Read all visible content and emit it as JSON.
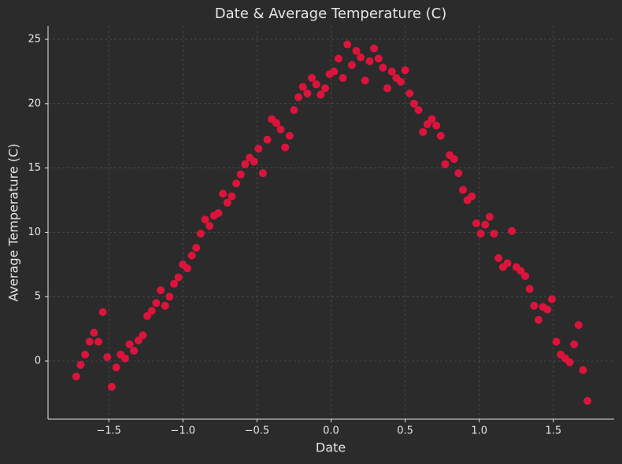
{
  "chart_data": {
    "type": "scatter",
    "title": "Date & Average Temperature (C)",
    "x_label": "Date",
    "y_label": "Average Temperature (C)",
    "color": "#dc143c",
    "grid": true,
    "xlim": [
      -1.91,
      1.91
    ],
    "ylim": [
      -4.52,
      26.04
    ],
    "xticks": [
      {
        "value": -1.5,
        "label": "−1.5"
      },
      {
        "value": -1.0,
        "label": "−1.0"
      },
      {
        "value": -0.5,
        "label": "−0.5"
      },
      {
        "value": 0,
        "label": "0.0"
      },
      0.5,
      {
        "value": 1,
        "label": "1.0"
      },
      1.5
    ],
    "yticks": [
      0,
      5,
      10,
      15,
      20,
      25
    ],
    "x": [
      -1.72,
      -1.69,
      -1.66,
      -1.63,
      -1.6,
      -1.57,
      -1.54,
      -1.51,
      -1.48,
      -1.45,
      -1.42,
      -1.39,
      -1.36,
      -1.33,
      -1.3,
      -1.27,
      -1.24,
      -1.21,
      -1.18,
      -1.15,
      -1.12,
      -1.09,
      -1.06,
      -1.03,
      -1.0,
      -0.97,
      -0.94,
      -0.91,
      -0.88,
      -0.85,
      -0.82,
      -0.79,
      -0.76,
      -0.73,
      -0.7,
      -0.67,
      -0.64,
      -0.61,
      -0.58,
      -0.55,
      -0.52,
      -0.49,
      -0.46,
      -0.43,
      -0.4,
      -0.37,
      -0.34,
      -0.31,
      -0.28,
      -0.25,
      -0.22,
      -0.19,
      -0.16,
      -0.13,
      -0.1,
      -0.07,
      -0.04,
      -0.01,
      0.02,
      0.05,
      0.08,
      0.11,
      0.14,
      0.17,
      0.2,
      0.23,
      0.26,
      0.29,
      0.32,
      0.35,
      0.38,
      0.41,
      0.44,
      0.47,
      0.5,
      0.53,
      0.56,
      0.59,
      0.62,
      0.65,
      0.68,
      0.71,
      0.74,
      0.77,
      0.8,
      0.83,
      0.86,
      0.89,
      0.92,
      0.95,
      0.98,
      1.01,
      1.04,
      1.07,
      1.1,
      1.13,
      1.16,
      1.19,
      1.22,
      1.25,
      1.28,
      1.31,
      1.34,
      1.37,
      1.4,
      1.43,
      1.46,
      1.49,
      1.52,
      1.55,
      1.58,
      1.61,
      1.64,
      1.67,
      1.7,
      1.73
    ],
    "values": [
      -1.2,
      -0.3,
      0.5,
      1.5,
      2.2,
      1.5,
      3.8,
      0.3,
      -2.0,
      -0.5,
      0.5,
      0.2,
      1.3,
      0.8,
      1.6,
      2.0,
      3.5,
      3.9,
      4.5,
      5.5,
      4.3,
      5.0,
      6.0,
      6.5,
      7.5,
      7.2,
      8.2,
      8.8,
      9.9,
      11.0,
      10.5,
      11.3,
      11.5,
      13.0,
      12.3,
      12.8,
      13.8,
      14.5,
      15.3,
      15.8,
      15.5,
      16.5,
      14.6,
      17.2,
      18.8,
      18.5,
      18.0,
      16.6,
      17.5,
      19.5,
      20.5,
      21.3,
      20.8,
      22.0,
      21.5,
      20.7,
      21.2,
      22.3,
      22.5,
      23.5,
      22.0,
      24.6,
      23.0,
      24.1,
      23.6,
      21.8,
      23.3,
      24.3,
      23.5,
      22.8,
      21.2,
      22.5,
      22.0,
      21.7,
      22.6,
      20.8,
      20.0,
      19.5,
      17.8,
      18.4,
      18.8,
      18.3,
      17.5,
      15.3,
      16.0,
      15.7,
      14.6,
      13.3,
      12.5,
      12.8,
      10.7,
      9.9,
      10.6,
      11.2,
      9.9,
      8.0,
      7.3,
      7.6,
      10.1,
      7.3,
      7.0,
      6.6,
      5.6,
      4.3,
      3.2,
      4.2,
      4.0,
      4.8,
      1.5,
      0.5,
      0.2,
      -0.1,
      1.3,
      2.8,
      -0.7,
      -3.1
    ]
  }
}
